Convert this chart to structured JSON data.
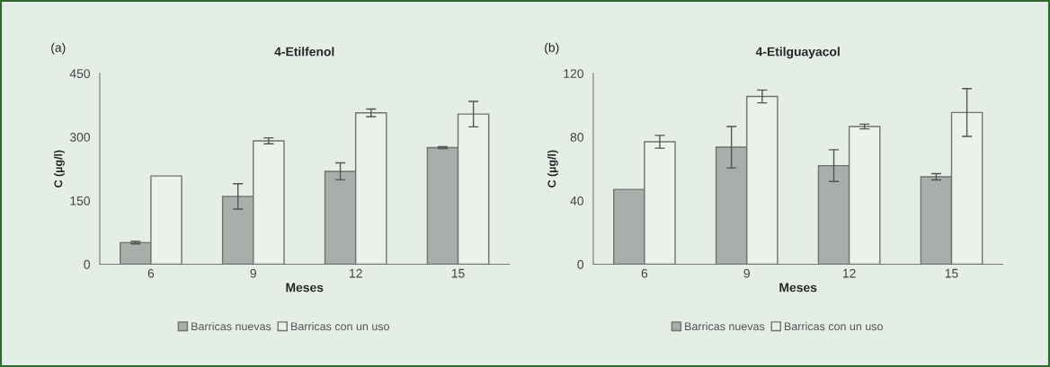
{
  "chart_data": [
    {
      "type": "bar",
      "title": "4-Etilfenol",
      "annotations": [
        "(a)"
      ],
      "xlabel": "Meses",
      "ylabel": "C (µg/l)",
      "categories": [
        "6",
        "9",
        "12",
        "15"
      ],
      "ylim": [
        0,
        450
      ],
      "yticks": [
        0,
        150,
        300,
        450
      ],
      "grid": false,
      "legend": "bottom",
      "series": [
        {
          "name": "Barricas nuevas",
          "color": "#a9aeab",
          "values": [
            51,
            160,
            219,
            275
          ],
          "errors": [
            3,
            30,
            20,
            2
          ]
        },
        {
          "name": "Barricas con un uso",
          "color": "#edf1ec",
          "values": [
            208,
            291,
            357,
            354
          ],
          "errors": [
            null,
            7,
            9,
            30
          ]
        }
      ]
    },
    {
      "type": "bar",
      "title": "4-Etilguayacol",
      "annotations": [
        "(b)"
      ],
      "xlabel": "Meses",
      "ylabel": "C (µg/l)",
      "categories": [
        "6",
        "9",
        "12",
        "15"
      ],
      "ylim": [
        0,
        120
      ],
      "yticks": [
        0,
        40,
        80,
        120
      ],
      "grid": false,
      "legend": "bottom",
      "series": [
        {
          "name": "Barricas nuevas",
          "color": "#a9aeab",
          "values": [
            47,
            73.6,
            62,
            55
          ],
          "errors": [
            null,
            13,
            10,
            2
          ]
        },
        {
          "name": "Barricas con un uso",
          "color": "#edf1ec",
          "values": [
            77,
            105.5,
            86.6,
            95.4
          ],
          "errors": [
            4,
            4,
            1.5,
            15
          ]
        }
      ]
    }
  ]
}
